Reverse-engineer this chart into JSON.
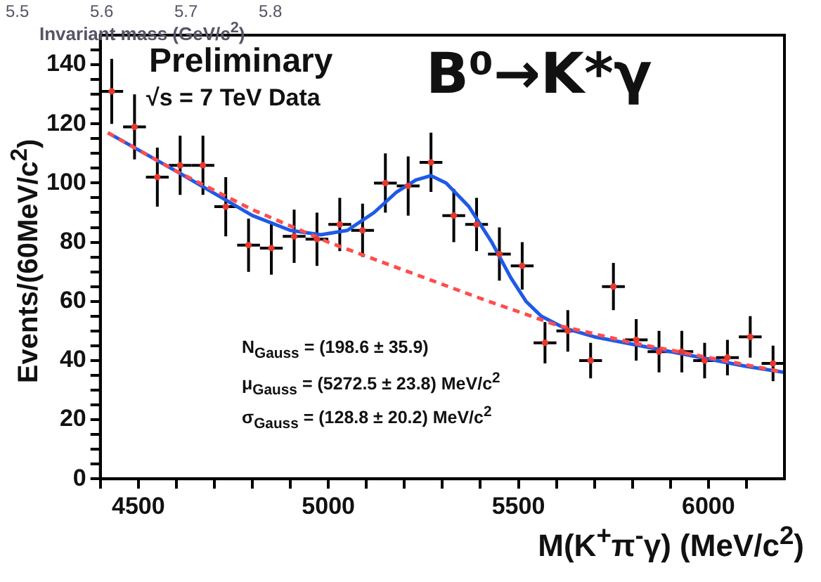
{
  "chart_data": {
    "type": "scatter",
    "title": "B⁰→K*γ",
    "xlabel": "M(K$^{+}$π$^{-}$γ) (MeV/c$^{2}$)",
    "ylabel": "Events/(60MeV/c$^{2}$)",
    "annotations": [
      "Invariant mass (GeV/c$^{2}$)",
      "5.5",
      "5.6",
      "5.7",
      "5.8",
      "Preliminary",
      "√s = 7 TeV Data",
      "N$_{Gauss}$ = (198.6 ± 35.9)",
      "μ$_{Gauss}$ = (5272.5 ± 23.8) MeV/c$^{2}$",
      "σ$_{Gauss}$ = (128.8 ± 20.2)  MeV/c$^{2}$"
    ],
    "xlim": [
      4400,
      6200
    ],
    "xticks": [
      {
        "value": 4400,
        "label": null
      },
      4500,
      {
        "value": 4600,
        "label": null
      },
      {
        "value": 4700,
        "label": null
      },
      {
        "value": 4800,
        "label": null
      },
      {
        "value": 4900,
        "label": null
      },
      5000,
      {
        "value": 5100,
        "label": null
      },
      {
        "value": 5200,
        "label": null
      },
      {
        "value": 5300,
        "label": null
      },
      {
        "value": 5400,
        "label": null
      },
      5500,
      {
        "value": 5600,
        "label": null
      },
      {
        "value": 5700,
        "label": null
      },
      {
        "value": 5800,
        "label": null
      },
      {
        "value": 5900,
        "label": null
      },
      6000,
      {
        "value": 6100,
        "label": null
      }
    ],
    "ylim": [
      0,
      150
    ],
    "yticks": [
      0,
      {
        "value": 5,
        "label": null
      },
      {
        "value": 10,
        "label": null
      },
      {
        "value": 15,
        "label": null
      },
      20,
      {
        "value": 25,
        "label": null
      },
      {
        "value": 30,
        "label": null
      },
      {
        "value": 35,
        "label": null
      },
      40,
      {
        "value": 45,
        "label": null
      },
      {
        "value": 50,
        "label": null
      },
      {
        "value": 55,
        "label": null
      },
      60,
      {
        "value": 65,
        "label": null
      },
      {
        "value": 70,
        "label": null
      },
      {
        "value": 75,
        "label": null
      },
      80,
      {
        "value": 85,
        "label": null
      },
      {
        "value": 90,
        "label": null
      },
      {
        "value": 95,
        "label": null
      },
      100,
      {
        "value": 105,
        "label": null
      },
      {
        "value": 110,
        "label": null
      },
      {
        "value": 115,
        "label": null
      },
      120,
      {
        "value": 125,
        "label": null
      },
      {
        "value": 130,
        "label": null
      },
      {
        "value": 135,
        "label": null
      },
      140,
      {
        "value": 145,
        "label": null
      }
    ],
    "grid": false,
    "legend": false,
    "series": [
      {
        "marker": "circle",
        "color": "#e8392e",
        "x": [
          4430,
          4490,
          4550,
          4610,
          4670,
          4730,
          4790,
          4850,
          4910,
          4970,
          5030,
          5090,
          5150,
          5210,
          5270,
          5330,
          5390,
          5450,
          5510,
          5570,
          5630,
          5690,
          5750,
          5810,
          5870,
          5930,
          5990,
          6050,
          6110,
          6170
        ],
        "values": [
          131,
          119,
          102,
          106,
          106,
          92,
          79,
          78,
          82,
          81,
          86,
          84,
          100,
          99,
          107,
          89,
          86,
          76,
          72,
          46,
          50,
          40,
          65,
          47,
          43,
          43,
          40,
          41,
          48,
          39
        ],
        "errors": [
          11,
          11,
          10,
          10,
          10,
          10,
          9,
          9,
          9,
          9,
          9,
          9,
          10,
          10,
          10,
          9,
          9,
          9,
          8,
          7,
          7,
          6,
          8,
          7,
          7,
          7,
          6,
          6,
          7,
          6
        ],
        "xerrors": [
          30,
          30,
          30,
          30,
          30,
          30,
          30,
          30,
          30,
          30,
          30,
          30,
          30,
          30,
          30,
          30,
          30,
          30,
          30,
          30,
          30,
          30,
          30,
          30,
          30,
          30,
          30,
          30,
          30,
          30
        ]
      },
      {
        "type": "line",
        "marker": "none",
        "line_style": "dashed",
        "color": "#ff4d4d",
        "x": [
          4420,
          4600,
          4800,
          5000,
          5200,
          5400,
          5600,
          5800,
          6000,
          6200
        ],
        "values": [
          117,
          104,
          91,
          80,
          70.5,
          61,
          52,
          46,
          41,
          36
        ]
      },
      {
        "type": "line",
        "marker": "none",
        "line_style": "solid",
        "color": "#1f5ae6",
        "x": [
          4420,
          4600,
          4800,
          4900,
          4980,
          5050,
          5120,
          5180,
          5230,
          5270,
          5310,
          5370,
          5430,
          5480,
          5520,
          5560,
          5620,
          5700,
          5800,
          5900,
          6000,
          6100,
          6200
        ],
        "values": [
          117,
          104,
          89,
          84,
          82.5,
          84,
          90,
          97,
          101,
          102.5,
          100,
          92,
          80,
          68,
          60,
          55,
          51,
          48,
          45.5,
          43,
          40.5,
          38,
          36
        ]
      }
    ]
  }
}
